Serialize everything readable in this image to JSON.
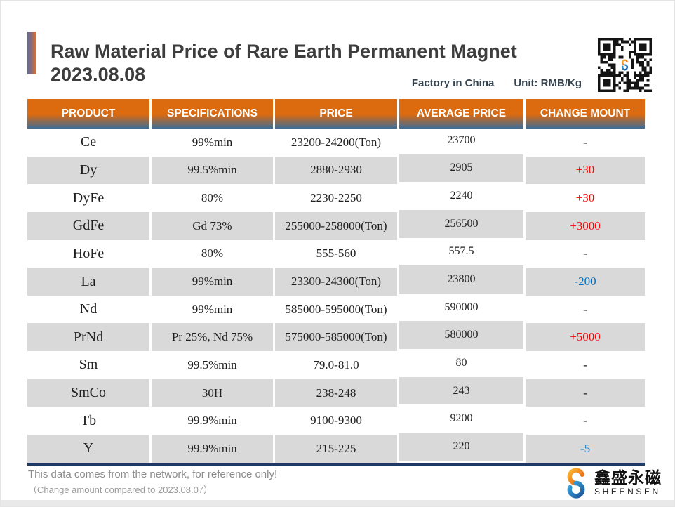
{
  "header": {
    "title_line1": "Raw Material Price of Rare Earth Permanent Magnet",
    "title_line2": "2023.08.08",
    "factory": "Factory in China",
    "unit": "Unit: RMB/Kg"
  },
  "table": {
    "headers": [
      "PRODUCT",
      "SPECIFICATIONS",
      "PRICE",
      "AVERAGE PRICE",
      "CHANGE MOUNT"
    ],
    "rows": [
      {
        "product": "Ce",
        "spec": "99%min",
        "price": "23200-24200(Ton)",
        "avg": "23700",
        "change": "-",
        "direction": "none"
      },
      {
        "product": "Dy",
        "spec": "99.5%min",
        "price": "2880-2930",
        "avg": "2905",
        "change": "+30",
        "direction": "up"
      },
      {
        "product": "DyFe",
        "spec": "80%",
        "price": "2230-2250",
        "avg": "2240",
        "change": "+30",
        "direction": "up"
      },
      {
        "product": "GdFe",
        "spec": "Gd 73%",
        "price": "255000-258000(Ton)",
        "avg": "256500",
        "change": "+3000",
        "direction": "up"
      },
      {
        "product": "HoFe",
        "spec": "80%",
        "price": "555-560",
        "avg": "557.5",
        "change": "-",
        "direction": "none"
      },
      {
        "product": "La",
        "spec": "99%min",
        "price": "23300-24300(Ton)",
        "avg": "23800",
        "change": "-200",
        "direction": "down"
      },
      {
        "product": "Nd",
        "spec": "99%min",
        "price": "585000-595000(Ton)",
        "avg": "590000",
        "change": "-",
        "direction": "none"
      },
      {
        "product": "PrNd",
        "spec": "Pr 25%, Nd 75%",
        "price": "575000-585000(Ton)",
        "avg": "580000",
        "change": "+5000",
        "direction": "up"
      },
      {
        "product": "Sm",
        "spec": "99.5%min",
        "price": "79.0-81.0",
        "avg": "80",
        "change": "-",
        "direction": "none"
      },
      {
        "product": "SmCo",
        "spec": "30H",
        "price": "238-248",
        "avg": "243",
        "change": "-",
        "direction": "none"
      },
      {
        "product": "Tb",
        "spec": "99.9%min",
        "price": "9100-9300",
        "avg": "9200",
        "change": "-",
        "direction": "none"
      },
      {
        "product": "Y",
        "spec": "99.9%min",
        "price": "215-225",
        "avg": "220",
        "change": "-5",
        "direction": "down"
      }
    ]
  },
  "footer": {
    "note1": "This data comes from the network, for reference only!",
    "note2": "（Change amount compared to 2023.08.07）"
  },
  "logo": {
    "zh": "鑫盛永磁",
    "en": "SHEENSEN"
  },
  "colors": {
    "header_orange": "#DC6A0F",
    "header_blue": "#3E6C96",
    "row_alt": "#D9D9D9",
    "change_up": "#FF0000",
    "change_down": "#0070C0",
    "table_bottom_line": "#1F3864",
    "body_text": "#1F1F1F",
    "title_text": "#3D3D3D"
  }
}
